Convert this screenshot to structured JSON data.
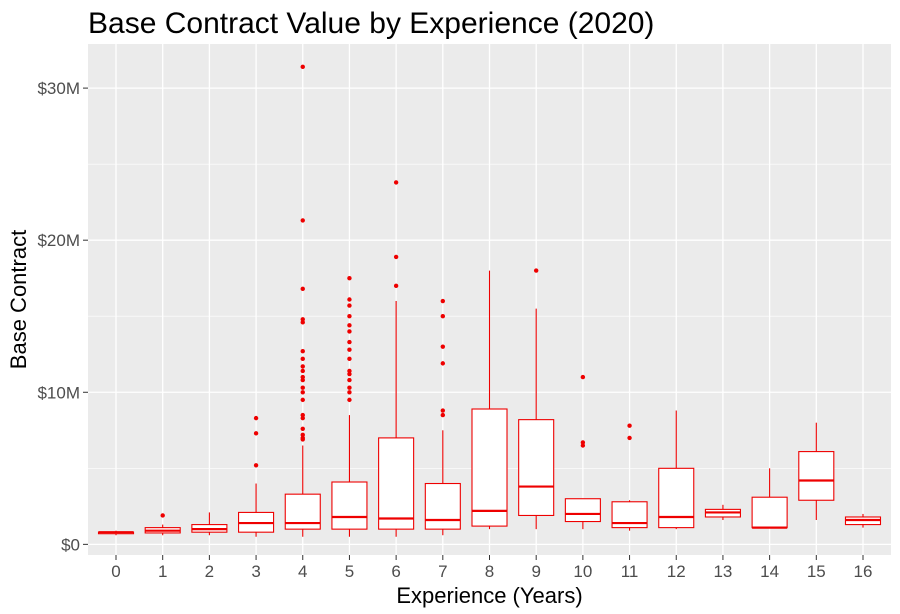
{
  "chart_data": {
    "type": "boxplot",
    "title": "Base Contract Value by Experience (2020)",
    "xlabel": "Experience (Years)",
    "ylabel": "Base Contract",
    "categories": [
      "0",
      "1",
      "2",
      "3",
      "4",
      "5",
      "6",
      "7",
      "8",
      "9",
      "10",
      "11",
      "12",
      "13",
      "14",
      "15",
      "16"
    ],
    "y_tick_values": [
      0,
      10,
      20,
      30
    ],
    "y_tick_labels": [
      "$0",
      "$10M",
      "$20M",
      "$30M"
    ],
    "y_unit": "millions USD",
    "ylim": [
      -0.7,
      32.9
    ],
    "grid": true,
    "colors": {
      "box": "#ee0000",
      "panel": "#ebebeb",
      "grid": "#ffffff"
    },
    "boxes": [
      {
        "x": "0",
        "min": 0.6,
        "q1": 0.7,
        "median": 0.8,
        "q3": 0.8,
        "max": 0.9,
        "outliers": []
      },
      {
        "x": "1",
        "min": 0.6,
        "q1": 0.75,
        "median": 0.9,
        "q3": 1.1,
        "max": 1.3,
        "outliers": [
          1.9
        ]
      },
      {
        "x": "2",
        "min": 0.6,
        "q1": 0.8,
        "median": 1.0,
        "q3": 1.3,
        "max": 2.1,
        "outliers": []
      },
      {
        "x": "3",
        "min": 0.5,
        "q1": 0.8,
        "median": 1.4,
        "q3": 2.1,
        "max": 4.0,
        "outliers": [
          5.2,
          7.3,
          8.3
        ]
      },
      {
        "x": "4",
        "min": 0.5,
        "q1": 1.0,
        "median": 1.4,
        "q3": 3.3,
        "max": 6.5,
        "outliers": [
          6.9,
          7.0,
          7.2,
          7.6,
          8.3,
          8.5,
          9.5,
          10.0,
          10.3,
          10.8,
          11.0,
          11.4,
          11.7,
          12.2,
          12.7,
          14.6,
          14.8,
          16.8,
          21.3,
          31.4
        ]
      },
      {
        "x": "5",
        "min": 0.5,
        "q1": 1.0,
        "median": 1.8,
        "q3": 4.1,
        "max": 8.5,
        "outliers": [
          9.5,
          10.0,
          10.3,
          10.8,
          11.2,
          11.4,
          12.2,
          12.8,
          13.3,
          14.0,
          14.4,
          15.0,
          15.7,
          16.1,
          17.5
        ]
      },
      {
        "x": "6",
        "min": 0.5,
        "q1": 1.0,
        "median": 1.7,
        "q3": 7.0,
        "max": 16.0,
        "outliers": [
          17.0,
          18.9,
          23.8
        ]
      },
      {
        "x": "7",
        "min": 0.6,
        "q1": 1.0,
        "median": 1.6,
        "q3": 4.0,
        "max": 7.5,
        "outliers": [
          8.5,
          8.8,
          11.9,
          13.0,
          15.0,
          16.0
        ]
      },
      {
        "x": "8",
        "min": 1.0,
        "q1": 1.2,
        "median": 2.2,
        "q3": 8.9,
        "max": 18.0,
        "outliers": []
      },
      {
        "x": "9",
        "min": 1.0,
        "q1": 1.9,
        "median": 3.8,
        "q3": 8.2,
        "max": 15.5,
        "outliers": [
          18.0
        ]
      },
      {
        "x": "10",
        "min": 1.0,
        "q1": 1.5,
        "median": 2.0,
        "q3": 3.0,
        "max": 3.0,
        "outliers": [
          6.5,
          6.7,
          11.0
        ]
      },
      {
        "x": "11",
        "min": 0.9,
        "q1": 1.1,
        "median": 1.4,
        "q3": 2.8,
        "max": 2.9,
        "outliers": [
          7.0,
          7.8
        ]
      },
      {
        "x": "12",
        "min": 1.0,
        "q1": 1.1,
        "median": 1.8,
        "q3": 5.0,
        "max": 8.8,
        "outliers": []
      },
      {
        "x": "13",
        "min": 1.6,
        "q1": 1.8,
        "median": 2.1,
        "q3": 2.3,
        "max": 2.6,
        "outliers": []
      },
      {
        "x": "14",
        "min": 1.1,
        "q1": 1.1,
        "median": 1.1,
        "q3": 3.1,
        "max": 5.0,
        "outliers": []
      },
      {
        "x": "15",
        "min": 1.6,
        "q1": 2.9,
        "median": 4.2,
        "q3": 6.1,
        "max": 8.0,
        "outliers": []
      },
      {
        "x": "16",
        "min": 1.1,
        "q1": 1.3,
        "median": 1.6,
        "q3": 1.8,
        "max": 2.0,
        "outliers": []
      }
    ]
  }
}
